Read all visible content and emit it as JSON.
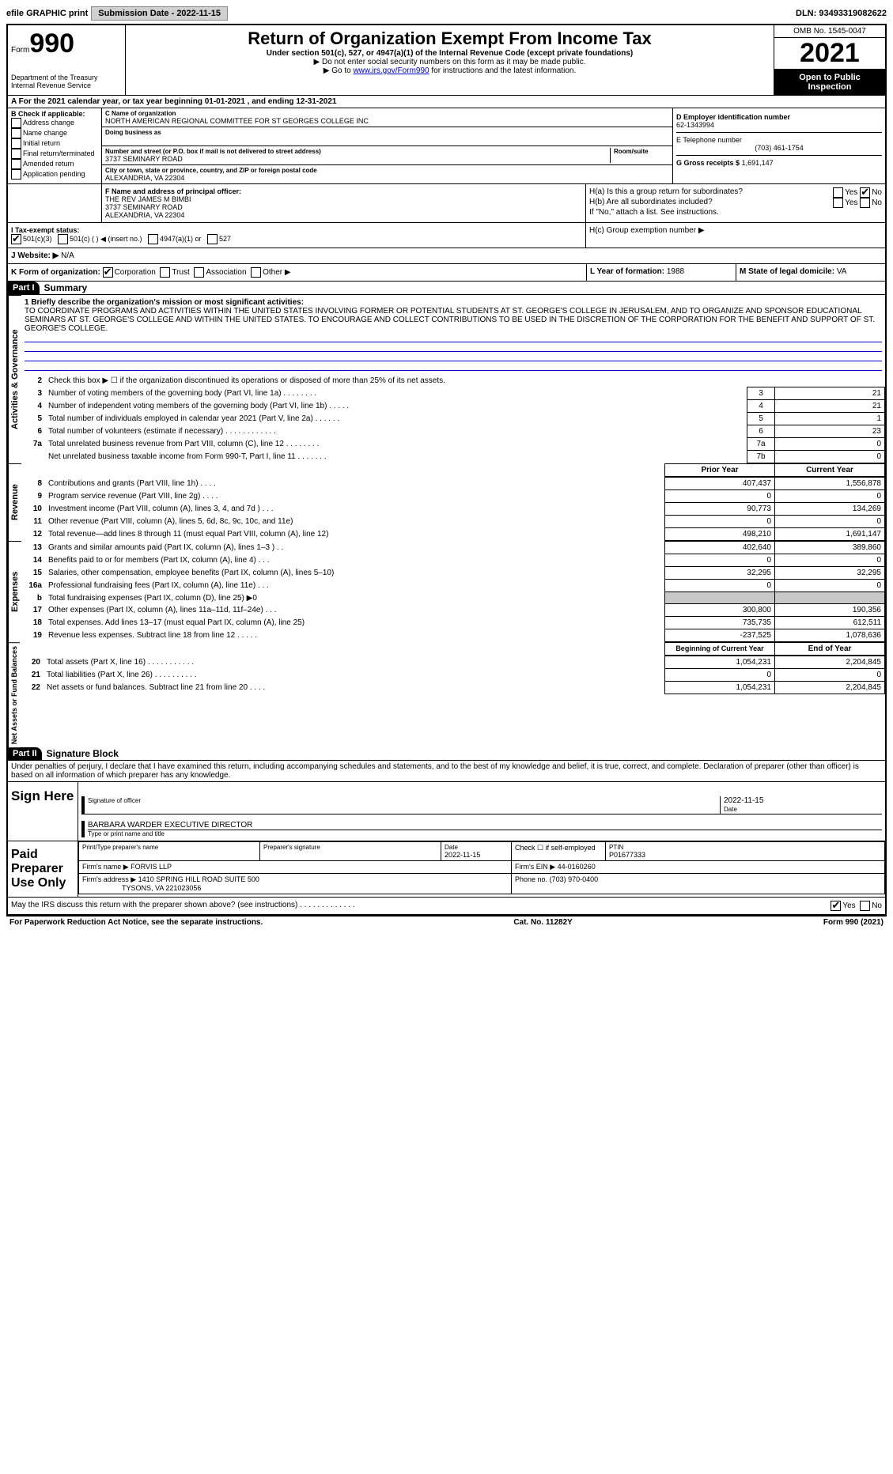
{
  "topbar": {
    "efile_label": "efile GRAPHIC print",
    "submission_label": "Submission Date - 2022-11-15",
    "dln_label": "DLN: 93493319082622"
  },
  "header": {
    "form_word": "Form",
    "form_number": "990",
    "dept": "Department of the Treasury",
    "irs": "Internal Revenue Service",
    "title": "Return of Organization Exempt From Income Tax",
    "subtitle": "Under section 501(c), 527, or 4947(a)(1) of the Internal Revenue Code (except private foundations)",
    "note1": "▶ Do not enter social security numbers on this form as it may be made public.",
    "note2_pre": "▶ Go to ",
    "note2_link": "www.irs.gov/Form990",
    "note2_post": " for instructions and the latest information.",
    "omb": "OMB No. 1545-0047",
    "year": "2021",
    "open_public": "Open to Public Inspection"
  },
  "period": "A For the 2021 calendar year, or tax year beginning 01-01-2021   , and ending 12-31-2021",
  "section_b": {
    "header": "B Check if applicable:",
    "items": [
      "Address change",
      "Name change",
      "Initial return",
      "Final return/terminated",
      "Amended return",
      "Application pending"
    ]
  },
  "section_c": {
    "name_label": "C Name of organization",
    "name": "NORTH AMERICAN REGIONAL COMMITTEE FOR ST GEORGES COLLEGE INC",
    "dba_label": "Doing business as",
    "addr_label": "Number and street (or P.O. box if mail is not delivered to street address)",
    "room_label": "Room/suite",
    "addr": "3737 SEMINARY ROAD",
    "city_label": "City or town, state or province, country, and ZIP or foreign postal code",
    "city": "ALEXANDRIA, VA  22304"
  },
  "section_d": {
    "label": "D Employer identification number",
    "value": "62-1343994"
  },
  "section_e": {
    "label": "E Telephone number",
    "value": "(703) 461-1754"
  },
  "section_g": {
    "label": "G Gross receipts $",
    "value": "1,691,147"
  },
  "section_f": {
    "label": "F  Name and address of principal officer:",
    "line1": "THE REV JAMES M BIMBI",
    "line2": "3737 SEMINARY ROAD",
    "line3": "ALEXANDRIA, VA  22304"
  },
  "section_h": {
    "ha": "H(a)  Is this a group return for subordinates?",
    "hb": "H(b)  Are all subordinates included?",
    "hb_note": "If \"No,\" attach a list. See instructions.",
    "hc": "H(c)  Group exemption number ▶",
    "yes": "Yes",
    "no": "No"
  },
  "section_i": {
    "label": "I  Tax-exempt status:",
    "opt1": "501(c)(3)",
    "opt2": "501(c) (  ) ◀ (insert no.)",
    "opt3": "4947(a)(1) or",
    "opt4": "527"
  },
  "section_j": {
    "label": "J  Website: ▶",
    "value": "N/A"
  },
  "section_k": {
    "label": "K Form of organization:",
    "corp": "Corporation",
    "trust": "Trust",
    "assoc": "Association",
    "other": "Other ▶"
  },
  "section_l": {
    "label": "L Year of formation:",
    "value": "1988"
  },
  "section_m": {
    "label": "M State of legal domicile:",
    "value": "VA"
  },
  "part1": {
    "header": "Part I",
    "title": "Summary",
    "line1_label": "1  Briefly describe the organization's mission or most significant activities:",
    "mission": "TO COORDINATE PROGRAMS AND ACTIVITIES WITHIN THE UNITED STATES INVOLVING FORMER OR POTENTIAL STUDENTS AT ST. GEORGE'S COLLEGE IN JERUSALEM, AND TO ORGANIZE AND SPONSOR EDUCATIONAL SEMINARS AT ST. GEORGE'S COLLEGE AND WITHIN THE UNITED STATES. TO ENCOURAGE AND COLLECT CONTRIBUTIONS TO BE USED IN THE DISCRETION OF THE CORPORATION FOR THE BENEFIT AND SUPPORT OF ST. GEORGE'S COLLEGE.",
    "line2": "Check this box ▶ ☐  if the organization discontinued its operations or disposed of more than 25% of its net assets.",
    "side_labels": {
      "ag": "Activities & Governance",
      "rev": "Revenue",
      "exp": "Expenses",
      "na": "Net Assets or Fund Balances"
    },
    "governance_rows": [
      {
        "n": "3",
        "desc": "Number of voting members of the governing body (Part VI, line 1a)  .   .   .   .   .   .   .   .",
        "box": "3",
        "val": "21"
      },
      {
        "n": "4",
        "desc": "Number of independent voting members of the governing body (Part VI, line 1b)  .   .   .   .   .",
        "box": "4",
        "val": "21"
      },
      {
        "n": "5",
        "desc": "Total number of individuals employed in calendar year 2021 (Part V, line 2a)   .   .   .   .   .   .",
        "box": "5",
        "val": "1"
      },
      {
        "n": "6",
        "desc": "Total number of volunteers (estimate if necessary)   .   .   .   .   .   .   .   .   .   .   .   .",
        "box": "6",
        "val": "23"
      },
      {
        "n": "7a",
        "desc": "Total unrelated business revenue from Part VIII, column (C), line 12   .   .   .   .   .   .   .   .",
        "box": "7a",
        "val": "0"
      },
      {
        "n": "",
        "desc": "Net unrelated business taxable income from Form 990-T, Part I, line 11  .   .   .   .   .   .   .",
        "box": "7b",
        "val": "0"
      }
    ],
    "col_headers": {
      "prior": "Prior Year",
      "current": "Current Year",
      "boy": "Beginning of Current Year",
      "eoy": "End of Year"
    },
    "revenue_rows": [
      {
        "n": "8",
        "desc": "Contributions and grants (Part VIII, line 1h)   .   .   .   .",
        "p": "407,437",
        "c": "1,556,878"
      },
      {
        "n": "9",
        "desc": "Program service revenue (Part VIII, line 2g)   .   .   .   .",
        "p": "0",
        "c": "0"
      },
      {
        "n": "10",
        "desc": "Investment income (Part VIII, column (A), lines 3, 4, and 7d )  .   .   .",
        "p": "90,773",
        "c": "134,269"
      },
      {
        "n": "11",
        "desc": "Other revenue (Part VIII, column (A), lines 5, 6d, 8c, 9c, 10c, and 11e)",
        "p": "0",
        "c": "0"
      },
      {
        "n": "12",
        "desc": "Total revenue—add lines 8 through 11 (must equal Part VIII, column (A), line 12)",
        "p": "498,210",
        "c": "1,691,147"
      }
    ],
    "expense_rows": [
      {
        "n": "13",
        "desc": "Grants and similar amounts paid (Part IX, column (A), lines 1–3 )  .   .",
        "p": "402,640",
        "c": "389,860"
      },
      {
        "n": "14",
        "desc": "Benefits paid to or for members (Part IX, column (A), line 4)   .   .   .",
        "p": "0",
        "c": "0"
      },
      {
        "n": "15",
        "desc": "Salaries, other compensation, employee benefits (Part IX, column (A), lines 5–10)",
        "p": "32,295",
        "c": "32,295"
      },
      {
        "n": "16a",
        "desc": "Professional fundraising fees (Part IX, column (A), line 11e)   .   .   .",
        "p": "0",
        "c": "0"
      },
      {
        "n": "b",
        "desc": "Total fundraising expenses (Part IX, column (D), line 25) ▶0",
        "p": "",
        "c": "",
        "gray": true
      },
      {
        "n": "17",
        "desc": "Other expenses (Part IX, column (A), lines 11a–11d, 11f–24e)   .   .   .",
        "p": "300,800",
        "c": "190,356"
      },
      {
        "n": "18",
        "desc": "Total expenses. Add lines 13–17 (must equal Part IX, column (A), line 25)",
        "p": "735,735",
        "c": "612,511"
      },
      {
        "n": "19",
        "desc": "Revenue less expenses. Subtract line 18 from line 12   .   .   .   .   .",
        "p": "-237,525",
        "c": "1,078,636"
      }
    ],
    "netassets_rows": [
      {
        "n": "20",
        "desc": "Total assets (Part X, line 16)   .   .   .   .   .   .   .   .   .   .   .",
        "p": "1,054,231",
        "c": "2,204,845"
      },
      {
        "n": "21",
        "desc": "Total liabilities (Part X, line 26)  .   .   .   .   .   .   .   .   .   .",
        "p": "0",
        "c": "0"
      },
      {
        "n": "22",
        "desc": "Net assets or fund balances. Subtract line 21 from line 20   .   .   .   .",
        "p": "1,054,231",
        "c": "2,204,845"
      }
    ]
  },
  "part2": {
    "header": "Part II",
    "title": "Signature Block",
    "penalties": "Under penalties of perjury, I declare that I have examined this return, including accompanying schedules and statements, and to the best of my knowledge and belief, it is true, correct, and complete. Declaration of preparer (other than officer) is based on all information of which preparer has any knowledge.",
    "sign_here": "Sign Here",
    "sig_officer": "Signature of officer",
    "date": "Date",
    "sig_date": "2022-11-15",
    "name_title": "BARBARA WARDER  EXECUTIVE DIRECTOR",
    "type_name": "Type or print name and title",
    "paid_prep": "Paid Preparer Use Only",
    "prep_name_label": "Print/Type preparer's name",
    "prep_sig_label": "Preparer's signature",
    "prep_date_label": "Date",
    "prep_date": "2022-11-15",
    "check_self": "Check ☐ if self-employed",
    "ptin_label": "PTIN",
    "ptin": "P01677333",
    "firm_name_label": "Firm's name    ▶",
    "firm_name": "FORVIS LLP",
    "firm_ein_label": "Firm's EIN ▶",
    "firm_ein": "44-0160260",
    "firm_addr_label": "Firm's address ▶",
    "firm_addr1": "1410 SPRING HILL ROAD SUITE 500",
    "firm_addr2": "TYSONS, VA  221023056",
    "phone_label": "Phone no.",
    "phone": "(703) 970-0400",
    "discuss": "May the IRS discuss this return with the preparer shown above? (see instructions)   .   .   .   .   .   .   .   .   .   .   .   .   .",
    "yes": "Yes",
    "no": "No"
  },
  "footer": {
    "left": "For Paperwork Reduction Act Notice, see the separate instructions.",
    "mid": "Cat. No. 11282Y",
    "right": "Form 990 (2021)"
  }
}
